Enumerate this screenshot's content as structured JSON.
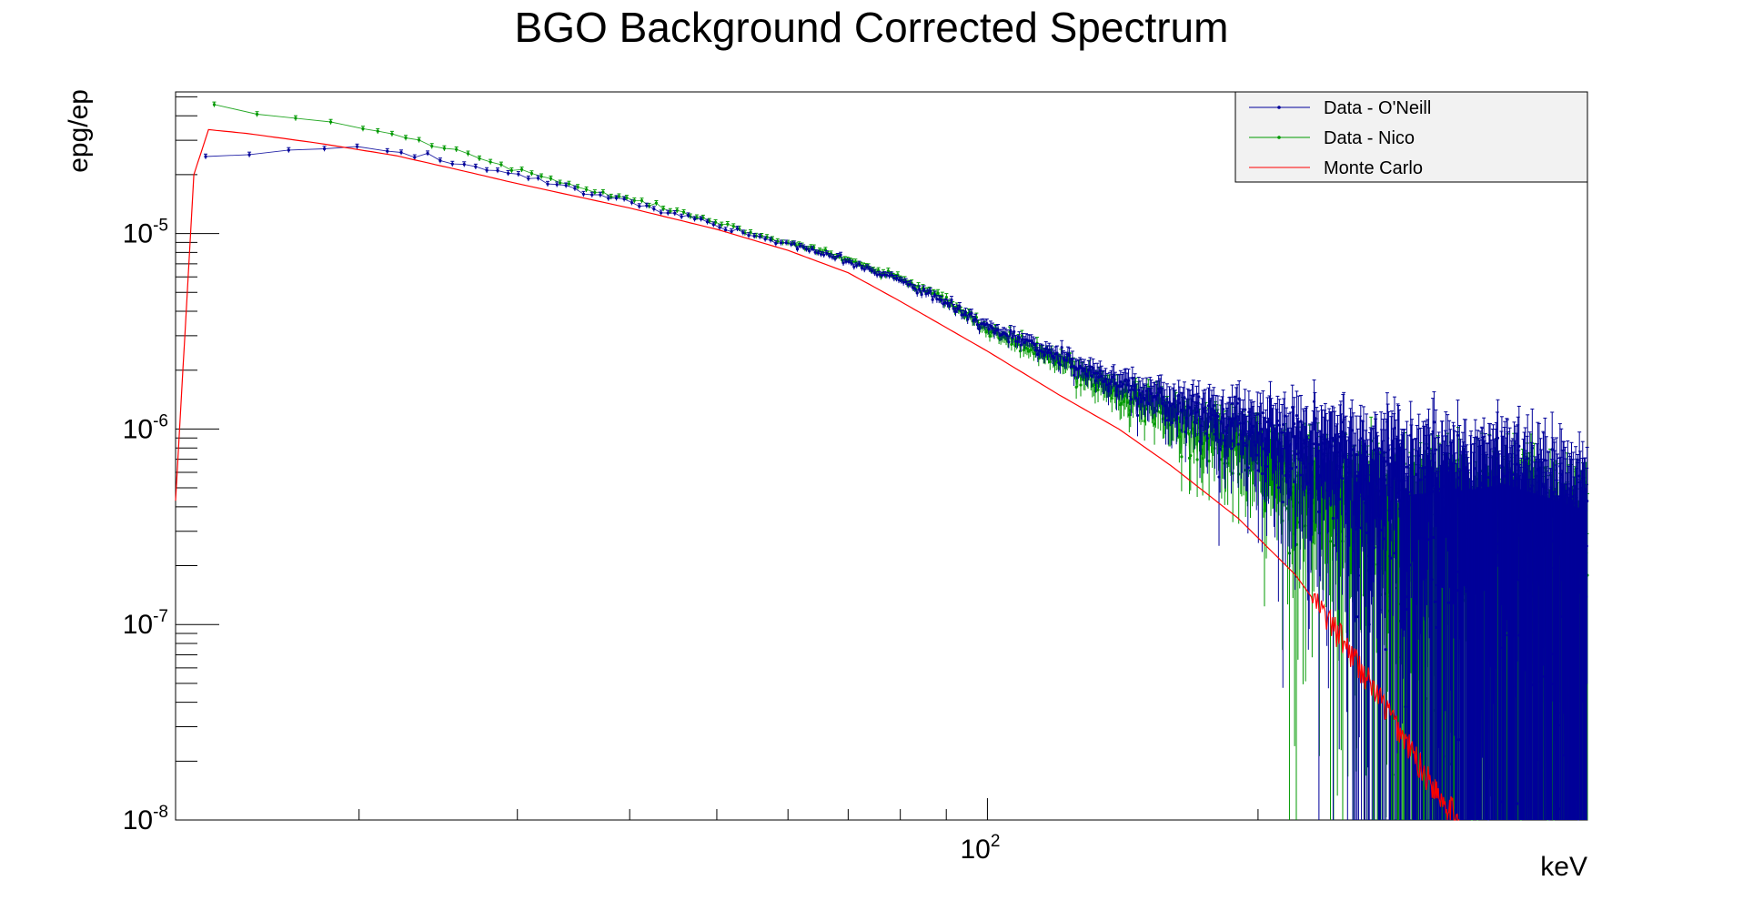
{
  "chart_data": {
    "type": "scatter",
    "title": "BGO Background Corrected Spectrum",
    "xlabel": "keV",
    "ylabel": "epg/ep",
    "x_scale": "log",
    "y_scale": "log",
    "xlim": [
      12.5,
      465
    ],
    "ylim": [
      1e-08,
      5.3e-05
    ],
    "x_tick_labels": [
      {
        "value": 100,
        "base": "10",
        "exp": "2"
      }
    ],
    "y_tick_labels": [
      {
        "value": 1e-05,
        "base": "10",
        "exp": "-5"
      },
      {
        "value": 1e-06,
        "base": "10",
        "exp": "-6"
      },
      {
        "value": 1e-07,
        "base": "10",
        "exp": "-7"
      },
      {
        "value": 1e-08,
        "base": "10",
        "exp": "-8"
      }
    ],
    "grid": false,
    "legend_position": "top-right",
    "series": [
      {
        "name": "Data - O'Neill",
        "color": "#000099",
        "style": "points with error bars",
        "anchors": [
          [
            13.5,
            2.45e-05
          ],
          [
            17,
            2.65e-05
          ],
          [
            20,
            2.75e-05
          ],
          [
            25,
            2.35e-05
          ],
          [
            30,
            2e-05
          ],
          [
            40,
            1.45e-05
          ],
          [
            50,
            1.1e-05
          ],
          [
            60,
            8.8e-06
          ],
          [
            70,
            7.2e-06
          ],
          [
            80,
            5.7e-06
          ],
          [
            90,
            4.4e-06
          ],
          [
            100,
            3.3e-06
          ],
          [
            120,
            2.3e-06
          ],
          [
            150,
            1.5e-06
          ],
          [
            180,
            1.1e-06
          ],
          [
            220,
            8e-07
          ],
          [
            280,
            5e-07
          ],
          [
            350,
            3.2e-07
          ],
          [
            465,
            2.1e-07
          ]
        ]
      },
      {
        "name": "Data - Nico",
        "color": "#009900",
        "style": "points with error bars",
        "anchors": [
          [
            13.8,
            4.5e-05
          ],
          [
            16,
            4e-05
          ],
          [
            18.5,
            3.7e-05
          ],
          [
            22,
            3.2e-05
          ],
          [
            26,
            2.6e-05
          ],
          [
            30,
            2.1e-05
          ],
          [
            40,
            1.5e-05
          ],
          [
            50,
            1.15e-05
          ],
          [
            60,
            9e-06
          ],
          [
            70,
            7.3e-06
          ],
          [
            80,
            5.8e-06
          ],
          [
            90,
            4.5e-06
          ],
          [
            100,
            3.2e-06
          ],
          [
            120,
            2.2e-06
          ],
          [
            150,
            1.3e-06
          ],
          [
            180,
            9e-07
          ],
          [
            220,
            5.5e-07
          ],
          [
            280,
            3.2e-07
          ],
          [
            350,
            2.2e-07
          ],
          [
            465,
            1.6e-07
          ]
        ]
      },
      {
        "name": "Monte Carlo",
        "color": "#ff0000",
        "style": "line",
        "anchors": [
          [
            12.5,
            4.3e-07
          ],
          [
            13.1,
            2e-05
          ],
          [
            13.6,
            3.4e-05
          ],
          [
            15,
            3.25e-05
          ],
          [
            18,
            2.9e-05
          ],
          [
            22,
            2.5e-05
          ],
          [
            26,
            2.1e-05
          ],
          [
            30,
            1.8e-05
          ],
          [
            40,
            1.35e-05
          ],
          [
            50,
            1.05e-05
          ],
          [
            60,
            8.2e-06
          ],
          [
            70,
            6.3e-06
          ],
          [
            80,
            4.5e-06
          ],
          [
            90,
            3.3e-06
          ],
          [
            100,
            2.5e-06
          ],
          [
            120,
            1.5e-06
          ],
          [
            140,
            1e-06
          ],
          [
            160,
            6.5e-07
          ],
          [
            190,
            3.5e-07
          ],
          [
            220,
            1.8e-07
          ],
          [
            250,
            8e-08
          ],
          [
            280,
            3.5e-08
          ],
          [
            310,
            1.6e-08
          ],
          [
            335,
            1e-08
          ]
        ]
      }
    ]
  }
}
